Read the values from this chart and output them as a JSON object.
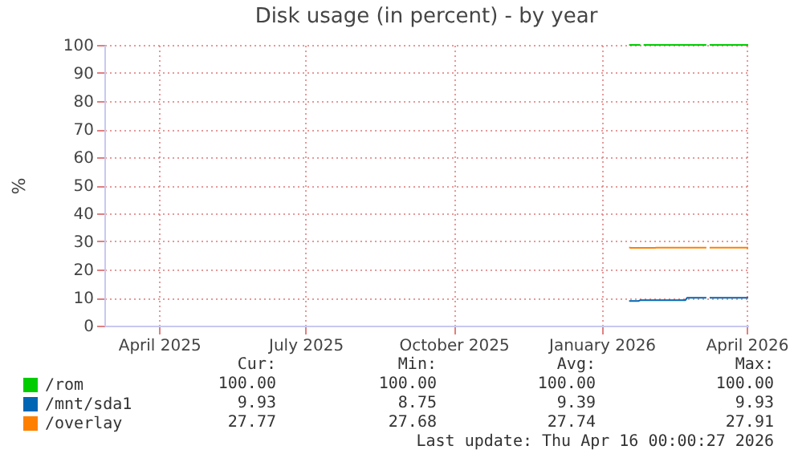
{
  "chart_data": {
    "type": "line",
    "title": "Disk usage (in percent) - by year",
    "ylabel": "%",
    "xlim": [
      "2025-03-12",
      "2026-04-16"
    ],
    "xticks": [
      {
        "value": "2025-04-15",
        "label": "April 2025"
      },
      {
        "value": "2025-07-15",
        "label": "July 2025"
      },
      {
        "value": "2025-10-15",
        "label": "October 2025"
      },
      {
        "value": "2026-01-15",
        "label": "January 2026"
      },
      {
        "value": "2026-04-15",
        "label": "April 2026"
      }
    ],
    "ylim": [
      0,
      100
    ],
    "yticks": [
      0,
      10,
      20,
      30,
      40,
      50,
      60,
      70,
      80,
      90,
      100
    ],
    "grid": true,
    "legend": "bottom left",
    "series": [
      {
        "name": "/rom",
        "color": "#00cc00",
        "x": [
          "2026-02-01",
          "2026-02-08",
          "2026-02-09",
          "2026-02-10",
          "2026-03-21",
          "2026-03-22",
          "2026-03-23",
          "2026-04-16"
        ],
        "values": [
          100,
          100,
          null,
          100,
          100,
          null,
          100,
          100
        ]
      },
      {
        "name": "/mnt/sda1",
        "color": "#0066b3",
        "x": [
          "2026-02-01",
          "2026-02-07",
          "2026-02-08",
          "2026-03-08",
          "2026-03-09",
          "2026-03-21",
          "2026-03-22",
          "2026-03-23",
          "2026-04-16"
        ],
        "values": [
          8.8,
          8.8,
          9.1,
          9.1,
          9.9,
          9.9,
          null,
          9.9,
          9.9
        ]
      },
      {
        "name": "/overlay",
        "color": "#ff8000",
        "x": [
          "2026-02-01",
          "2026-02-02",
          "2026-02-17",
          "2026-02-18",
          "2026-03-21",
          "2026-03-22",
          "2026-03-23",
          "2026-04-16"
        ],
        "values": [
          27.9,
          27.7,
          27.7,
          27.8,
          27.8,
          null,
          27.8,
          27.8
        ]
      }
    ],
    "annotations": [
      "Cur:",
      "Min:",
      "Avg:",
      "Max:",
      "100.00",
      "100.00",
      "100.00",
      "100.00",
      "9.93",
      "8.75",
      "9.39",
      "9.93",
      "27.77",
      "27.68",
      "27.74",
      "27.91",
      "Last update: Thu Apr 16 00:00:27 2026"
    ]
  }
}
